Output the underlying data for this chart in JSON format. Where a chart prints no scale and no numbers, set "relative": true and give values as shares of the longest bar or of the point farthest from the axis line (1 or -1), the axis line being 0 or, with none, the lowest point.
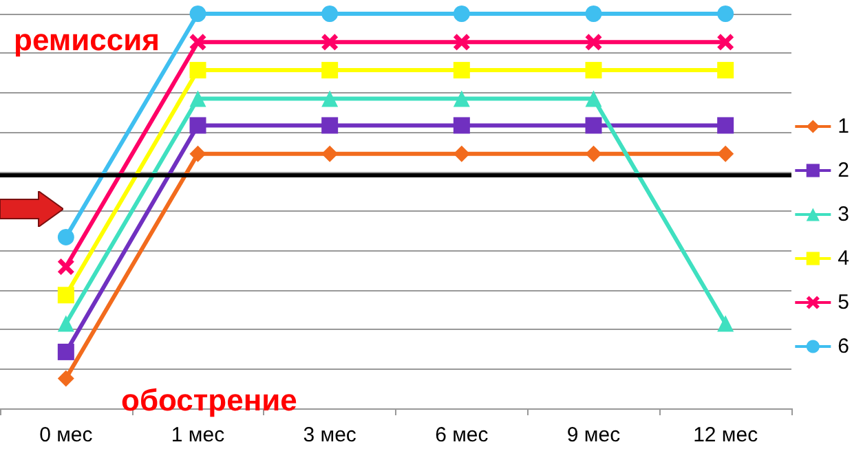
{
  "chart_data": {
    "type": "line",
    "relative": true,
    "categories": [
      "0 мес",
      "1 мес",
      "3 мес",
      "6 мес",
      "9 мес",
      "12 мес"
    ],
    "series": [
      {
        "name": "1",
        "color": "#f26b1d",
        "marker": "diamond",
        "values": [
          0.076,
          0.645,
          0.645,
          0.645,
          0.645,
          0.645
        ]
      },
      {
        "name": "2",
        "color": "#7030c0",
        "marker": "square",
        "values": [
          0.143,
          0.717,
          0.717,
          0.717,
          0.717,
          0.717
        ]
      },
      {
        "name": "3",
        "color": "#3fe0c0",
        "marker": "triangle",
        "values": [
          0.215,
          0.785,
          0.785,
          0.785,
          0.785,
          0.215
        ]
      },
      {
        "name": "4",
        "color": "#ffff00",
        "marker": "square",
        "values": [
          0.287,
          0.857,
          0.857,
          0.857,
          0.857,
          0.857
        ]
      },
      {
        "name": "5",
        "color": "#ff0066",
        "marker": "cross",
        "values": [
          0.359,
          0.928,
          0.928,
          0.928,
          0.928,
          0.928
        ]
      },
      {
        "name": "6",
        "color": "#3fbff0",
        "marker": "circle",
        "values": [
          0.434,
          1,
          1,
          1,
          1,
          1
        ]
      }
    ],
    "ref_lines": [
      {
        "axis": "y",
        "value": 0.586,
        "color": "#000000"
      }
    ],
    "annotations": [
      "ремиссия",
      "обострение"
    ],
    "grid": "y",
    "legend": "right",
    "line_style": "solid"
  }
}
